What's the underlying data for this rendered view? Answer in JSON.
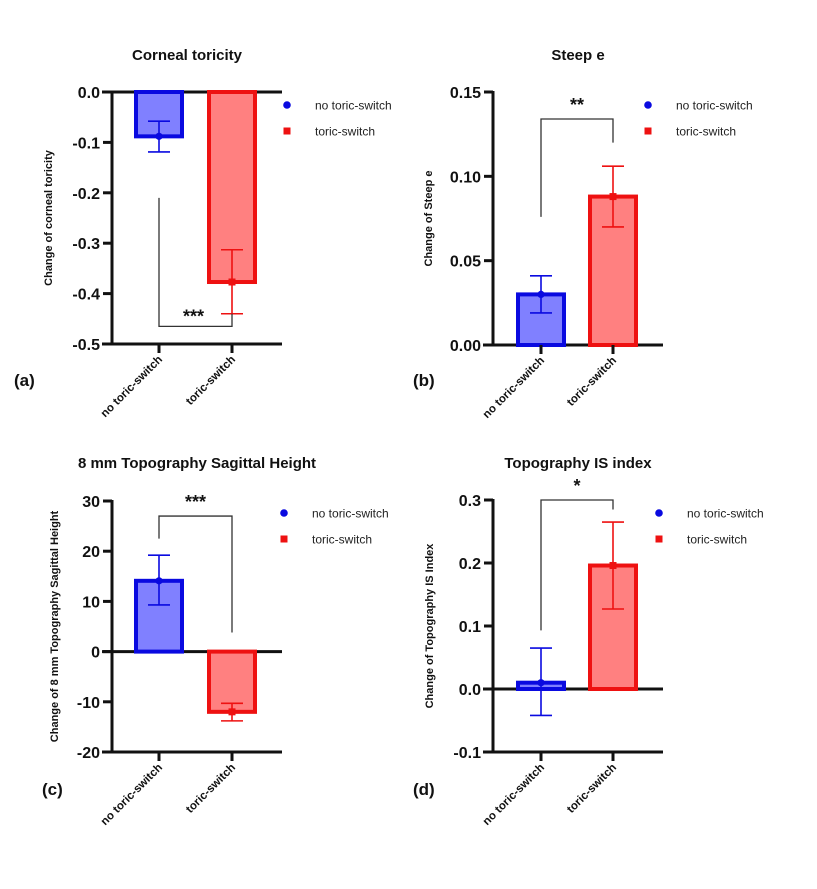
{
  "chart_data": [
    {
      "type": "bar",
      "panel_label": "(a)",
      "title": "Corneal toricity",
      "xlabel": "",
      "ylabel": "Change of corneal toricity",
      "categories": [
        "no toric-switch",
        "toric-switch"
      ],
      "values": [
        -0.088,
        -0.377
      ],
      "error_low": [
        -0.119,
        -0.44
      ],
      "error_high": [
        -0.058,
        -0.313
      ],
      "ylim": [
        -0.5,
        0.0
      ],
      "yticks": [
        0.0,
        -0.1,
        -0.2,
        -0.3,
        -0.4,
        -0.5
      ],
      "ytick_labels": [
        "0.0",
        "-0.1",
        "-0.2",
        "-0.3",
        "-0.4",
        "-0.5"
      ],
      "significance": {
        "label": "***",
        "bracket_at": -0.465,
        "arm_from": [
          -0.21,
          -0.44
        ],
        "position": "below"
      },
      "legend": {
        "entries": [
          "no toric-switch",
          "toric-switch"
        ],
        "placement": "right"
      }
    },
    {
      "type": "bar",
      "panel_label": "(b)",
      "title": "Steep e",
      "xlabel": "",
      "ylabel": "Change of Steep e",
      "categories": [
        "no toric-switch",
        "toric-switch"
      ],
      "values": [
        0.03,
        0.088
      ],
      "error_low": [
        0.019,
        0.07
      ],
      "error_high": [
        0.041,
        0.106
      ],
      "ylim": [
        0.0,
        0.15
      ],
      "yticks": [
        0.0,
        0.05,
        0.1,
        0.15
      ],
      "ytick_labels": [
        "0.00",
        "0.05",
        "0.10",
        "0.15"
      ],
      "significance": {
        "label": "**",
        "bracket_at": 0.134,
        "arm_from": [
          0.076,
          0.12
        ],
        "position": "above"
      },
      "legend": {
        "entries": [
          "no toric-switch",
          "toric-switch"
        ],
        "placement": "right"
      }
    },
    {
      "type": "bar",
      "panel_label": "(c)",
      "title": "8 mm Topography Sagittal Height",
      "xlabel": "",
      "ylabel": "Change of 8 mm Topography Sagittal Height",
      "categories": [
        "no toric-switch",
        "toric-switch"
      ],
      "values": [
        14.1,
        -12.0
      ],
      "error_low": [
        9.3,
        -13.8
      ],
      "error_high": [
        19.2,
        -10.3
      ],
      "ylim": [
        -20,
        30
      ],
      "yticks": [
        30,
        20,
        10,
        0,
        -10,
        -20
      ],
      "ytick_labels": [
        "30",
        "20",
        "10",
        "0",
        "-10",
        "-20"
      ],
      "significance": {
        "label": "***",
        "bracket_at": 27,
        "arm_from": [
          22.5,
          3.8
        ],
        "position": "above"
      },
      "legend": {
        "entries": [
          "no toric-switch",
          "toric-switch"
        ],
        "placement": "right"
      }
    },
    {
      "type": "bar",
      "panel_label": "(d)",
      "title": "Topography IS index",
      "xlabel": "",
      "ylabel": "Change of Topography IS Index",
      "categories": [
        "no toric-switch",
        "toric-switch"
      ],
      "values": [
        0.01,
        0.196
      ],
      "error_low": [
        -0.042,
        0.127
      ],
      "error_high": [
        0.065,
        0.265
      ],
      "ylim": [
        -0.1,
        0.3
      ],
      "yticks": [
        0.3,
        0.2,
        0.1,
        0.0,
        -0.1
      ],
      "ytick_labels": [
        "0.3",
        "0.2",
        "0.1",
        "0.0",
        "-0.1"
      ],
      "significance": {
        "label": "*",
        "bracket_at": 0.3,
        "arm_from": [
          0.093,
          0.285
        ],
        "position": "above"
      },
      "legend": {
        "entries": [
          "no toric-switch",
          "toric-switch"
        ],
        "placement": "right"
      }
    }
  ],
  "series_colors": {
    "no toric-switch": {
      "stroke": "#0a0ae0",
      "fill": "#8080ff",
      "marker": "circle"
    },
    "toric-switch": {
      "stroke": "#ee1111",
      "fill": "#ff8080",
      "marker": "square"
    }
  }
}
